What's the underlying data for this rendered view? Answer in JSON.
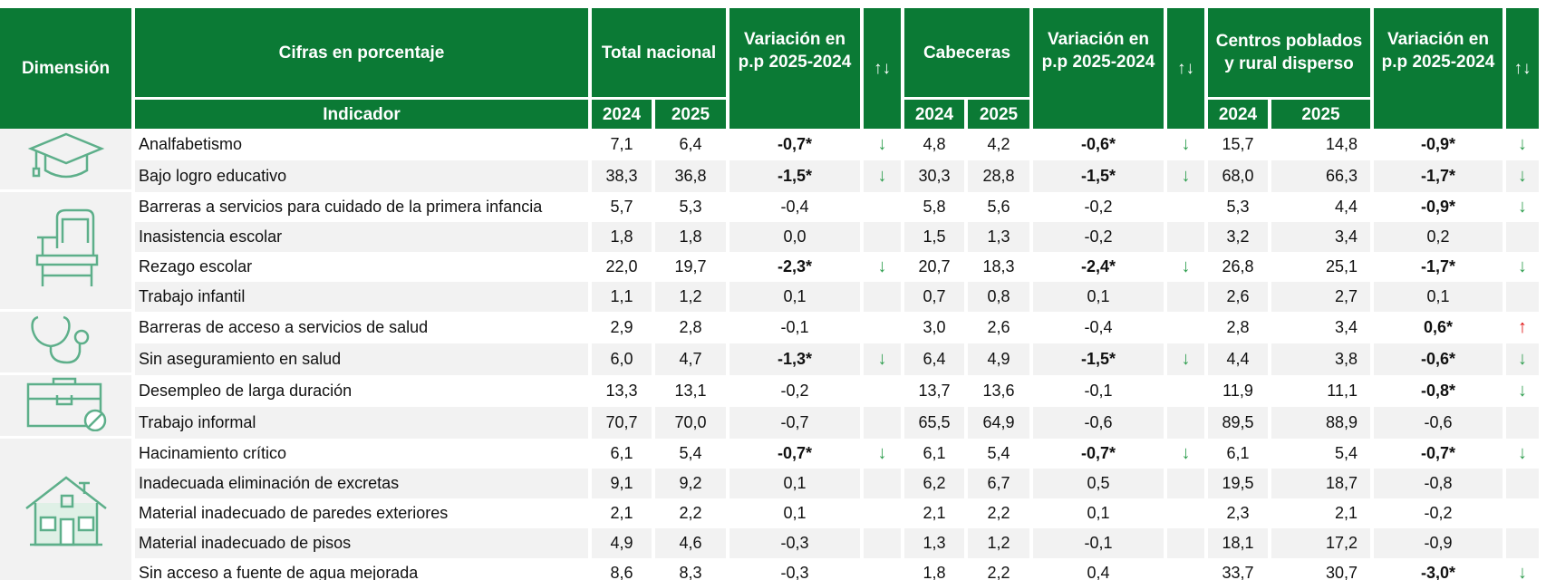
{
  "header": {
    "dimension": "Dimensión",
    "figures": "Cifras en porcentaje",
    "indicator": "Indicador",
    "groups": [
      {
        "name": "Total nacional",
        "years": [
          "2024",
          "2025"
        ],
        "variation": "Variación en p.p 2025-2024",
        "arrows": "↑↓"
      },
      {
        "name": "Cabeceras",
        "years": [
          "2024",
          "2025"
        ],
        "variation": "Variación en p.p 2025-2024",
        "arrows": "↑↓"
      },
      {
        "name": "Centros poblados y rural disperso",
        "years": [
          "2024",
          "2025"
        ],
        "variation": "Variación en p.p 2025-2024",
        "arrows": "↑↓"
      }
    ]
  },
  "rows": [
    {
      "indicator": "Analfabetismo",
      "groups": [
        [
          "7,1",
          "6,4",
          "-0,7*",
          "↓"
        ],
        [
          "4,8",
          "4,2",
          "-0,6*",
          "↓"
        ],
        [
          "15,7",
          "14,8",
          "-0,9*",
          "↓"
        ]
      ]
    },
    {
      "indicator": "Bajo logro educativo",
      "groups": [
        [
          "38,3",
          "36,8",
          "-1,5*",
          "↓"
        ],
        [
          "30,3",
          "28,8",
          "-1,5*",
          "↓"
        ],
        [
          "68,0",
          "66,3",
          "-1,7*",
          "↓"
        ]
      ]
    },
    {
      "indicator": "Barreras a servicios para cuidado de la primera infancia",
      "groups": [
        [
          "5,7",
          "5,3",
          "-0,4",
          null
        ],
        [
          "5,8",
          "5,6",
          "-0,2",
          null
        ],
        [
          "5,3",
          "4,4",
          "-0,9*",
          "↓"
        ]
      ]
    },
    {
      "indicator": "Inasistencia escolar",
      "groups": [
        [
          "1,8",
          "1,8",
          "0,0",
          null
        ],
        [
          "1,5",
          "1,3",
          "-0,2",
          null
        ],
        [
          "3,2",
          "3,4",
          "0,2",
          null
        ]
      ]
    },
    {
      "indicator": "Rezago escolar",
      "groups": [
        [
          "22,0",
          "19,7",
          "-2,3*",
          "↓"
        ],
        [
          "20,7",
          "18,3",
          "-2,4*",
          "↓"
        ],
        [
          "26,8",
          "25,1",
          "-1,7*",
          "↓"
        ]
      ]
    },
    {
      "indicator": "Trabajo infantil",
      "groups": [
        [
          "1,1",
          "1,2",
          "0,1",
          null
        ],
        [
          "0,7",
          "0,8",
          "0,1",
          null
        ],
        [
          "2,6",
          "2,7",
          "0,1",
          null
        ]
      ]
    },
    {
      "indicator": "Barreras de acceso a servicios de salud",
      "groups": [
        [
          "2,9",
          "2,8",
          "-0,1",
          null
        ],
        [
          "3,0",
          "2,6",
          "-0,4",
          null
        ],
        [
          "2,8",
          "3,4",
          "0,6*",
          "↑"
        ]
      ]
    },
    {
      "indicator": "Sin aseguramiento en salud",
      "groups": [
        [
          "6,0",
          "4,7",
          "-1,3*",
          "↓"
        ],
        [
          "6,4",
          "4,9",
          "-1,5*",
          "↓"
        ],
        [
          "4,4",
          "3,8",
          "-0,6*",
          "↓"
        ]
      ]
    },
    {
      "indicator": "Desempleo de larga duración",
      "groups": [
        [
          "13,3",
          "13,1",
          "-0,2",
          null
        ],
        [
          "13,7",
          "13,6",
          "-0,1",
          null
        ],
        [
          "11,9",
          "11,1",
          "-0,8*",
          "↓"
        ]
      ]
    },
    {
      "indicator": "Trabajo informal",
      "groups": [
        [
          "70,7",
          "70,0",
          "-0,7",
          null
        ],
        [
          "65,5",
          "64,9",
          "-0,6",
          null
        ],
        [
          "89,5",
          "88,9",
          "-0,6",
          null
        ]
      ]
    },
    {
      "indicator": "Hacinamiento crítico",
      "groups": [
        [
          "6,1",
          "5,4",
          "-0,7*",
          "↓"
        ],
        [
          "6,1",
          "5,4",
          "-0,7*",
          "↓"
        ],
        [
          "6,1",
          "5,4",
          "-0,7*",
          "↓"
        ]
      ]
    },
    {
      "indicator": "Inadecuada eliminación de excretas",
      "groups": [
        [
          "9,1",
          "9,2",
          "0,1",
          null
        ],
        [
          "6,2",
          "6,7",
          "0,5",
          null
        ],
        [
          "19,5",
          "18,7",
          "-0,8",
          null
        ]
      ]
    },
    {
      "indicator": "Material inadecuado de paredes exteriores",
      "groups": [
        [
          "2,1",
          "2,2",
          "0,1",
          null
        ],
        [
          "2,1",
          "2,2",
          "0,1",
          null
        ],
        [
          "2,3",
          "2,1",
          "-0,2",
          null
        ]
      ]
    },
    {
      "indicator": "Material inadecuado de pisos",
      "groups": [
        [
          "4,9",
          "4,6",
          "-0,3",
          null
        ],
        [
          "1,3",
          "1,2",
          "-0,1",
          null
        ],
        [
          "18,1",
          "17,2",
          "-0,9",
          null
        ]
      ]
    },
    {
      "indicator": "Sin acceso a fuente de agua mejorada",
      "groups": [
        [
          "8,6",
          "8,3",
          "-0,3",
          null
        ],
        [
          "1,8",
          "2,2",
          "0,4",
          null
        ],
        [
          "33,7",
          "30,7",
          "-3,0*",
          "↓"
        ]
      ]
    }
  ]
}
